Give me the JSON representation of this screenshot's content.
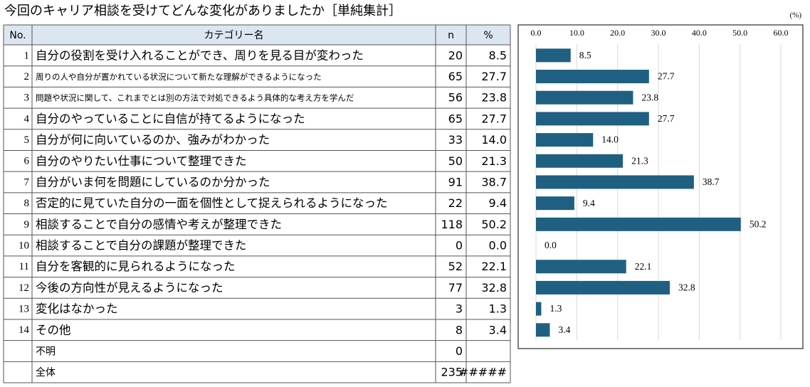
{
  "title": "今回のキャリア相談を受けてどんな変化がありましたか［単純集計］",
  "table": {
    "headers": {
      "no": "No.",
      "label": "カテゴリー名",
      "n": "n",
      "pct": "%"
    },
    "rows": [
      {
        "no": "1",
        "label": "自分の役割を受け入れることができ、周りを見る目が変わった",
        "n": "20",
        "pct": "8.5"
      },
      {
        "no": "2",
        "label": "周りの人や自分が置かれている状況について新たな理解ができるようになった",
        "n": "65",
        "pct": "27.7"
      },
      {
        "no": "3",
        "label": "問題や状況に関して、これまでとは別の方法で対処できるよう具体的な考え方を学んだ",
        "n": "56",
        "pct": "23.8"
      },
      {
        "no": "4",
        "label": "自分のやっていることに自信が持てるようになった",
        "n": "65",
        "pct": "27.7"
      },
      {
        "no": "5",
        "label": "自分が何に向いているのか、強みがわかった",
        "n": "33",
        "pct": "14.0"
      },
      {
        "no": "6",
        "label": "自分のやりたい仕事について整理できた",
        "n": "50",
        "pct": "21.3"
      },
      {
        "no": "7",
        "label": "自分がいま何を問題にしているのか分かった",
        "n": "91",
        "pct": "38.7"
      },
      {
        "no": "8",
        "label": "否定的に見ていた自分の一面を個性として捉えられるようになった",
        "n": "22",
        "pct": "9.4"
      },
      {
        "no": "9",
        "label": "相談することで自分の感情や考えが整理できた",
        "n": "118",
        "pct": "50.2"
      },
      {
        "no": "10",
        "label": "相談することで自分の課題が整理できた",
        "n": "0",
        "pct": "0.0"
      },
      {
        "no": "11",
        "label": "自分を客観的に見られるようになった",
        "n": "52",
        "pct": "22.1"
      },
      {
        "no": "12",
        "label": "今後の方向性が見えるようになった",
        "n": "77",
        "pct": "32.8"
      },
      {
        "no": "13",
        "label": "変化はなかった",
        "n": "3",
        "pct": "1.3"
      },
      {
        "no": "14",
        "label": "その他",
        "n": "8",
        "pct": "3.4"
      },
      {
        "label": "不明",
        "n": "0"
      },
      {
        "label": "全体",
        "n": "235",
        "pct": "#####"
      }
    ]
  },
  "chart_data": {
    "type": "hbar",
    "unit_label": "(%)",
    "color": "#1f5f82",
    "grid": true,
    "values": [
      8.5,
      27.7,
      23.8,
      27.7,
      14.0,
      21.3,
      38.7,
      9.4,
      50.2,
      0.0,
      22.1,
      32.8,
      1.3,
      3.4
    ],
    "value_labels": [
      "8.5",
      "27.7",
      "23.8",
      "27.7",
      "14.0",
      "21.3",
      "38.7",
      "9.4",
      "50.2",
      "0.0",
      "22.1",
      "32.8",
      "1.3",
      "3.4"
    ],
    "xlim": [
      0,
      60
    ],
    "xticks": [
      {
        "value": 0,
        "label": "0.0"
      },
      {
        "value": 10,
        "label": "10.0"
      },
      {
        "value": 20,
        "label": "20.0"
      },
      {
        "value": 30,
        "label": "30.0"
      },
      {
        "value": 40,
        "label": "40.0"
      },
      {
        "value": 50,
        "label": "50.0"
      },
      {
        "value": 60,
        "label": "60.0"
      }
    ]
  }
}
